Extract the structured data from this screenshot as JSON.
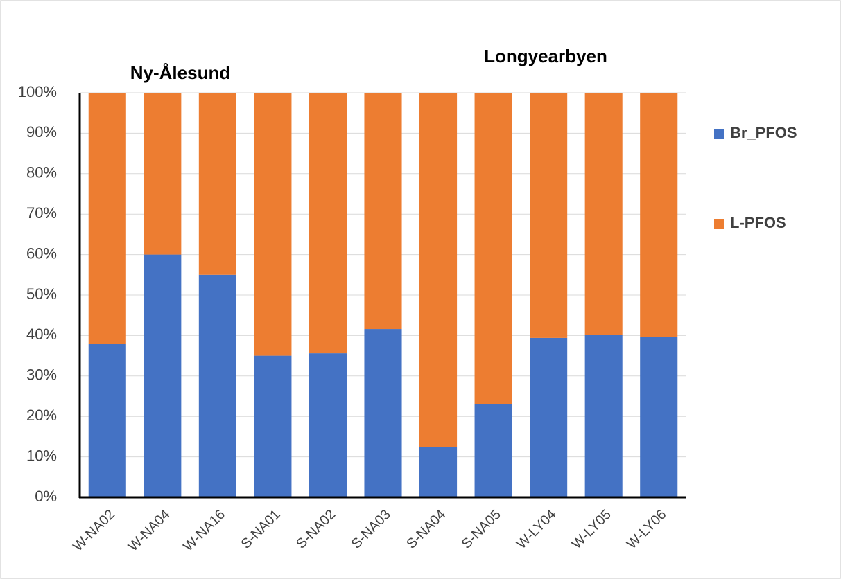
{
  "chart_data": {
    "type": "stacked_bar",
    "annotations": [
      "Ny-Ålesund",
      "Longyearbyen"
    ],
    "categories": [
      "W-NA02",
      "W-NA04",
      "W-NA16",
      "S-NA01",
      "S-NA02",
      "S-NA03",
      "S-NA04",
      "S-NA05",
      "W-LY04",
      "W-LY05",
      "W-LY06"
    ],
    "series": [
      {
        "name": "Br_PFOS",
        "color": "#4472c4",
        "values": [
          38,
          60,
          55,
          35,
          35.6,
          41.6,
          12.5,
          23,
          39.4,
          40.1,
          39.7
        ]
      },
      {
        "name": "L-PFOS",
        "color": "#ed7d31",
        "values": [
          62,
          40,
          45,
          65,
          64.4,
          58.4,
          87.5,
          77,
          60.6,
          59.9,
          60.3
        ]
      }
    ],
    "ylim": [
      0,
      100
    ],
    "yticks": [
      {
        "value": 0,
        "label": "0%"
      },
      {
        "value": 10,
        "label": "10%"
      },
      {
        "value": 20,
        "label": "20%"
      },
      {
        "value": 30,
        "label": "30%"
      },
      {
        "value": 40,
        "label": "40%"
      },
      {
        "value": 50,
        "label": "50%"
      },
      {
        "value": 60,
        "label": "60%"
      },
      {
        "value": 70,
        "label": "70%"
      },
      {
        "value": 80,
        "label": "80%"
      },
      {
        "value": 90,
        "label": "90%"
      },
      {
        "value": 100,
        "label": "100%"
      }
    ],
    "grid": true,
    "legend": "right"
  }
}
